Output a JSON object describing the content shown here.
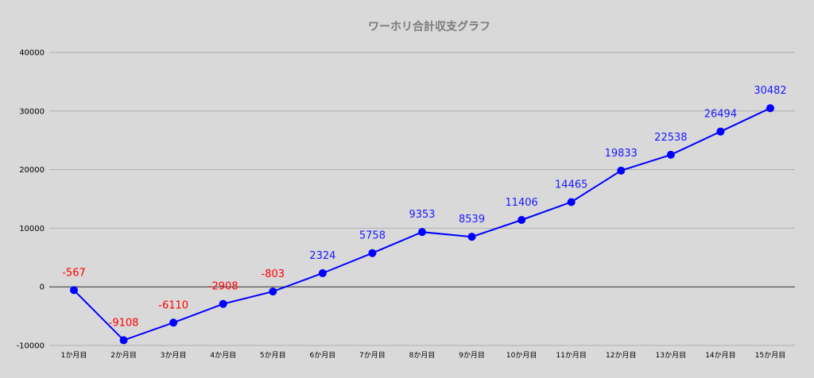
{
  "chart_data": {
    "type": "line",
    "title": "ワーホリ合計収支グラフ",
    "xlabel": "",
    "ylabel": "",
    "categories": [
      "1か月目",
      "2か月目",
      "3か月目",
      "4か月目",
      "5か月目",
      "6か月目",
      "7か月目",
      "8か月目",
      "9か月目",
      "10か月目",
      "11か月目",
      "12か月目",
      "13か月目",
      "14か月目",
      "15か月目"
    ],
    "series": [
      {
        "values": [
          -567,
          -9108,
          -6110,
          -2908,
          -803,
          2324,
          5758,
          9353,
          8539,
          11406,
          14465,
          19833,
          22538,
          26494,
          30482
        ]
      }
    ],
    "data_labels": [
      "-567",
      "-9108",
      "-6110",
      "-2908",
      "-803",
      "2324",
      "5758",
      "9353",
      "8539",
      "11406",
      "14465",
      "19833",
      "22538",
      "26494",
      "30482"
    ],
    "yticks": [
      "-10000",
      "0",
      "10000",
      "20000",
      "30000",
      "40000"
    ],
    "ylim": [
      -10000,
      40000
    ],
    "grid": true,
    "legend": "none",
    "colors": {
      "line": "#0000ff",
      "positive_label": "#1a1aff",
      "negative_label": "#ff0000",
      "grid": "#b0b0b0",
      "zero_line": "#333333",
      "title": "#7a7a7a",
      "background": "#d9d9d9"
    }
  }
}
